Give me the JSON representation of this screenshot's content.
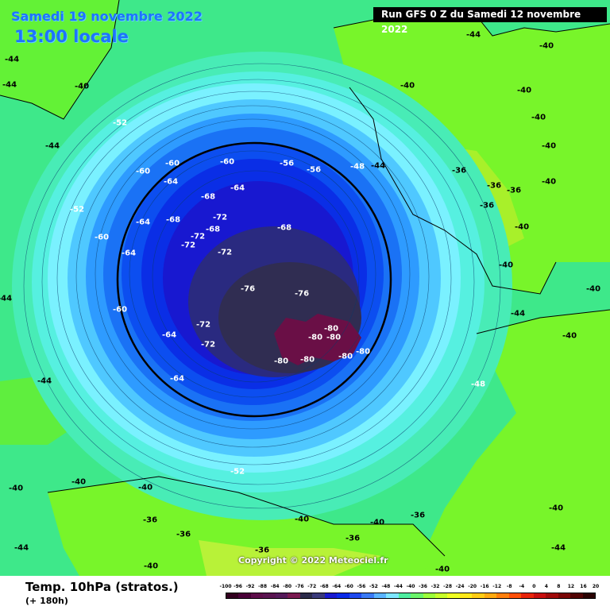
{
  "header": {
    "date": "Samedi 19 novembre 2022",
    "time": "13:00 locale",
    "run": "Run GFS 0 Z du Samedi 12 novembre 2022"
  },
  "footer": {
    "title": "Temp. 10hPa (stratos.)",
    "lead": "(+ 180h)"
  },
  "copyright": "Copyright © 2022 Meteociel.fr",
  "scale": {
    "labels": [
      "-100",
      "-96",
      "-92",
      "-88",
      "-84",
      "-80",
      "-76",
      "-72",
      "-68",
      "-64",
      "-60",
      "-56",
      "-52",
      "-48",
      "-44",
      "-40",
      "-36",
      "-32",
      "-28",
      "-24",
      "-20",
      "-16",
      "-12",
      "-8",
      "-4",
      "0",
      "4",
      "8",
      "12",
      "16",
      "20"
    ],
    "colors": [
      "#330020",
      "#4a0038",
      "#5e0d4a",
      "#5a1450",
      "#561a5a",
      "#7a1a50",
      "#2b2b4a",
      "#3a3a7a",
      "#1a1ad0",
      "#0a2ae8",
      "#1f4af0",
      "#3a7af5",
      "#5ab4ff",
      "#7ee6ff",
      "#4eeea0",
      "#6bf56b",
      "#9cff3a",
      "#c8ff2a",
      "#f0ff22",
      "#ffe91a",
      "#ffcc14",
      "#ffaa10",
      "#ff7f0c",
      "#ff4f08",
      "#e8240a",
      "#c80e0e",
      "#a00a0a",
      "#7a0606",
      "#520404",
      "#2a0202"
    ]
  },
  "map_labels": {
    "light": [
      "-44",
      "-40",
      "-44",
      "-40",
      "-44",
      "-40",
      "-40",
      "-44",
      "-44",
      "-40",
      "-40",
      "-40",
      "-36",
      "-36",
      "-36",
      "-36",
      "-40",
      "-40",
      "-40",
      "-40",
      "-44",
      "-44",
      "-44",
      "-40",
      "-40",
      "-40",
      "-40",
      "-40",
      "-36",
      "-36",
      "-36",
      "-36",
      "-36",
      "-40",
      "-44",
      "-40",
      "-44",
      "-40"
    ],
    "dark": [
      "-52",
      "-60",
      "-60",
      "-60",
      "-64",
      "-68",
      "-64",
      "-64",
      "-68",
      "-72",
      "-72",
      "-68",
      "-72",
      "-72",
      "-68",
      "-64",
      "-60",
      "-76",
      "-76",
      "-72",
      "-72",
      "-80",
      "-80",
      "-80",
      "-80",
      "-80",
      "-80",
      "-80",
      "-64",
      "-64",
      "-60",
      "-56",
      "-56",
      "-52",
      "-52",
      "-48",
      "-48"
    ]
  },
  "colors": {
    "sea": "#27e58f",
    "land": "#6cff22"
  }
}
